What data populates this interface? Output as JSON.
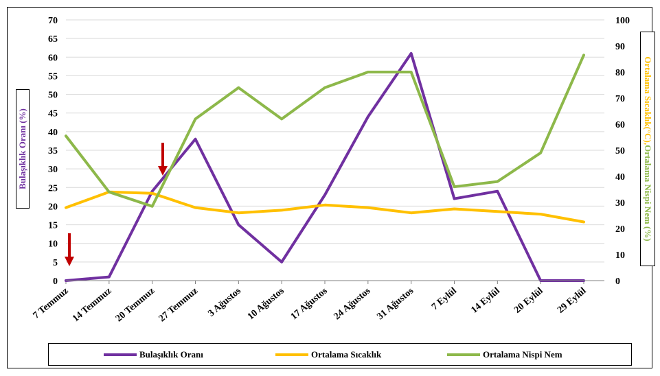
{
  "chart_data": {
    "type": "line",
    "categories": [
      "7 Temmuz",
      "14 Temmuz",
      "20 Temmuz",
      "27 Temmuz",
      "3 Ağustos",
      "10 Ağustos",
      "17 Ağustos",
      "24 Ağustos",
      "31 Ağustos",
      "7 Eylül",
      "14 Eylül",
      "20 Eylül",
      "29 Eylül"
    ],
    "ylabel": "Bulaşıklık Oranı (%)",
    "y2label": "Ortalama Sıcaklık(°C),Ortalama Nispi Nem (%)",
    "ylim": [
      0,
      70
    ],
    "yticks": [
      0,
      5,
      10,
      15,
      20,
      25,
      30,
      35,
      40,
      45,
      50,
      55,
      60,
      65,
      70
    ],
    "y2lim": [
      0,
      100
    ],
    "y2ticks": [
      0,
      10,
      20,
      30,
      40,
      50,
      60,
      70,
      80,
      90,
      100
    ],
    "grid": "horizontal",
    "legend_position": "bottom",
    "series": [
      {
        "name": "Bulaşıklık Oranı",
        "axis": "left",
        "color": "#7030A0",
        "values": [
          0,
          1,
          24,
          38,
          15,
          5,
          23,
          44,
          61,
          22,
          24,
          0,
          0
        ]
      },
      {
        "name": "Ortalama Sıcaklık",
        "axis": "right",
        "color": "#FFC000",
        "values": [
          28,
          34,
          33.5,
          28,
          26,
          27,
          29,
          28,
          26,
          27.5,
          26.5,
          25.5,
          22.5
        ]
      },
      {
        "name": "Ortalama Nispi Nem",
        "axis": "right",
        "color": "#8DB84A",
        "values": [
          55.5,
          34,
          28.5,
          62,
          74,
          62,
          74,
          80,
          80,
          36,
          38,
          49,
          86.5
        ]
      }
    ],
    "annotations": [
      {
        "type": "arrow",
        "direction": "down",
        "color": "#C00000",
        "at_category": "7 Temmuz"
      },
      {
        "type": "arrow",
        "direction": "down",
        "color": "#C00000",
        "at_category": "20 Temmuz"
      }
    ]
  }
}
